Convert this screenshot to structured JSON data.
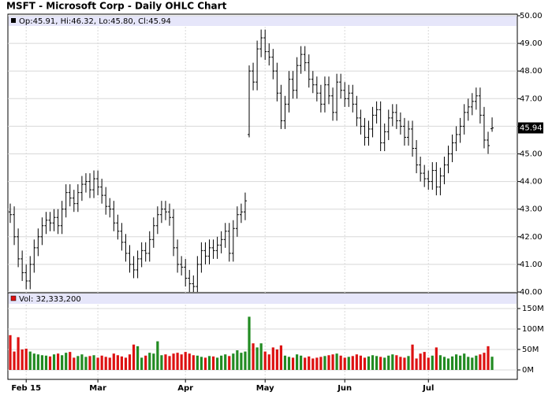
{
  "chart_data": {
    "type": "ohlc",
    "title": "MSFT - Microsoft Corp - Daily OHLC Chart",
    "price_legend": "Op:45.91, Hi:46.32, Lo:45.80, Cl:45.94",
    "volume_legend": "Vol: 32,333,200",
    "last_label": "45.94",
    "categories": [
      null,
      null,
      null,
      null,
      "Feb 15",
      null,
      null,
      null,
      null,
      null,
      null,
      null,
      null,
      null,
      null,
      null,
      null,
      null,
      null,
      null,
      null,
      null,
      "Mar",
      null,
      null,
      null,
      null,
      null,
      null,
      null,
      null,
      null,
      null,
      null,
      null,
      null,
      null,
      null,
      null,
      null,
      null,
      null,
      null,
      null,
      "Apr",
      null,
      null,
      null,
      null,
      null,
      null,
      null,
      null,
      null,
      null,
      null,
      null,
      null,
      null,
      null,
      null,
      null,
      null,
      null,
      "May",
      null,
      null,
      null,
      null,
      null,
      null,
      null,
      null,
      null,
      null,
      null,
      null,
      null,
      null,
      null,
      null,
      null,
      null,
      null,
      "Jun",
      null,
      null,
      null,
      null,
      null,
      null,
      null,
      null,
      null,
      null,
      null,
      null,
      null,
      null,
      null,
      null,
      null,
      null,
      null,
      null,
      "Jul",
      null,
      null,
      null,
      null,
      null,
      null,
      null,
      null,
      null,
      null,
      null,
      null,
      null,
      null,
      null,
      null
    ],
    "open": [
      42.9,
      42.8,
      42.0,
      41.2,
      40.7,
      40.4,
      41.0,
      41.6,
      42.0,
      42.4,
      42.6,
      42.5,
      42.7,
      42.4,
      43.0,
      43.6,
      43.4,
      43.2,
      43.6,
      43.9,
      44.0,
      43.7,
      44.1,
      43.8,
      43.5,
      43.1,
      43.0,
      42.5,
      42.2,
      41.8,
      41.4,
      41.0,
      40.8,
      41.2,
      41.5,
      41.4,
      41.9,
      42.4,
      42.8,
      43.0,
      42.9,
      42.7,
      41.6,
      41.0,
      40.9,
      40.5,
      40.3,
      40.2,
      41.0,
      41.5,
      41.3,
      41.6,
      41.5,
      41.7,
      41.9,
      42.2,
      41.4,
      42.3,
      42.8,
      42.9,
      45.7,
      48.0,
      47.6,
      48.8,
      49.2,
      48.7,
      48.5,
      48.0,
      47.2,
      46.2,
      46.8,
      47.7,
      47.3,
      48.2,
      48.6,
      48.3,
      47.7,
      47.5,
      47.2,
      46.8,
      47.5,
      47.1,
      46.5,
      47.6,
      47.3,
      47.0,
      47.2,
      46.8,
      46.3,
      46.0,
      45.6,
      45.9,
      46.4,
      46.6,
      45.4,
      45.8,
      46.3,
      46.5,
      46.2,
      46.0,
      45.6,
      45.9,
      45.2,
      44.6,
      44.3,
      44.1,
      44.0,
      44.4,
      43.8,
      44.2,
      44.6,
      45.0,
      45.4,
      45.7,
      46.0,
      46.5,
      46.7,
      46.9,
      47.1,
      46.4,
      45.5,
      45.91
    ],
    "high": [
      43.2,
      43.1,
      42.3,
      41.5,
      41.0,
      41.3,
      41.9,
      42.3,
      42.7,
      42.9,
      42.9,
      43.0,
      43.0,
      43.3,
      43.9,
      43.9,
      43.7,
      43.9,
      44.2,
      44.3,
      44.3,
      44.4,
      44.4,
      44.1,
      43.8,
      43.4,
      43.3,
      42.8,
      42.5,
      42.1,
      41.7,
      41.3,
      41.5,
      41.8,
      41.8,
      42.2,
      42.7,
      43.1,
      43.3,
      43.3,
      43.2,
      43.0,
      41.9,
      41.3,
      41.2,
      40.8,
      40.6,
      41.3,
      41.8,
      41.8,
      41.9,
      41.9,
      42.0,
      42.2,
      42.5,
      42.5,
      42.6,
      43.1,
      43.2,
      43.6,
      48.2,
      48.3,
      49.1,
      49.5,
      49.5,
      49.0,
      48.8,
      48.3,
      47.5,
      47.1,
      48.0,
      48.0,
      48.5,
      48.9,
      48.9,
      48.6,
      48.0,
      47.8,
      47.5,
      47.8,
      47.8,
      47.4,
      47.9,
      47.9,
      47.6,
      47.5,
      47.5,
      47.1,
      46.6,
      46.3,
      46.2,
      46.7,
      46.9,
      46.9,
      46.1,
      46.6,
      46.8,
      46.8,
      46.5,
      46.3,
      46.2,
      46.2,
      45.5,
      44.9,
      44.6,
      44.4,
      44.7,
      44.7,
      44.5,
      44.9,
      45.3,
      45.7,
      46.0,
      46.3,
      46.8,
      47.0,
      47.2,
      47.4,
      47.4,
      46.7,
      45.8,
      46.32
    ],
    "low": [
      42.5,
      41.7,
      40.9,
      40.4,
      40.1,
      40.1,
      40.7,
      41.3,
      41.7,
      42.1,
      42.2,
      42.2,
      42.1,
      42.1,
      42.7,
      43.1,
      42.9,
      42.9,
      43.3,
      43.6,
      43.4,
      43.4,
      43.5,
      43.2,
      42.8,
      42.7,
      42.2,
      41.9,
      41.5,
      41.1,
      40.7,
      40.5,
      40.5,
      40.9,
      41.1,
      41.1,
      41.6,
      42.1,
      42.5,
      42.6,
      42.4,
      41.3,
      40.7,
      40.6,
      40.2,
      40.0,
      40.0,
      40.0,
      40.7,
      41.0,
      41.0,
      41.2,
      41.2,
      41.4,
      41.6,
      41.1,
      41.1,
      42.0,
      42.5,
      42.6,
      45.6,
      47.3,
      47.3,
      48.5,
      48.4,
      48.2,
      47.7,
      46.9,
      45.9,
      45.9,
      46.5,
      47.0,
      47.0,
      47.9,
      48.0,
      47.4,
      47.2,
      46.9,
      46.5,
      46.5,
      46.8,
      46.2,
      46.2,
      47.0,
      46.7,
      46.7,
      46.5,
      46.0,
      45.7,
      45.3,
      45.3,
      45.6,
      46.1,
      45.1,
      45.1,
      45.5,
      46.0,
      45.9,
      45.7,
      45.3,
      45.3,
      44.9,
      44.3,
      44.0,
      43.8,
      43.7,
      43.7,
      43.5,
      43.5,
      43.9,
      44.3,
      44.7,
      45.1,
      45.4,
      45.7,
      46.2,
      46.4,
      46.6,
      46.1,
      45.2,
      45.0,
      45.8
    ],
    "close": [
      42.8,
      42.0,
      41.2,
      40.7,
      40.4,
      41.0,
      41.6,
      42.0,
      42.4,
      42.6,
      42.5,
      42.7,
      42.4,
      43.0,
      43.6,
      43.4,
      43.2,
      43.6,
      43.9,
      44.0,
      43.7,
      44.1,
      43.8,
      43.5,
      43.1,
      43.0,
      42.5,
      42.2,
      41.8,
      41.4,
      41.0,
      40.8,
      41.2,
      41.5,
      41.4,
      41.9,
      42.4,
      42.8,
      43.0,
      42.9,
      42.7,
      41.6,
      41.0,
      40.9,
      40.5,
      40.3,
      40.2,
      41.0,
      41.5,
      41.3,
      41.6,
      41.5,
      41.7,
      41.9,
      42.2,
      41.4,
      42.3,
      42.8,
      42.9,
      43.3,
      48.0,
      47.6,
      48.8,
      49.2,
      48.7,
      48.5,
      48.0,
      47.2,
      46.2,
      46.8,
      47.7,
      47.3,
      48.2,
      48.6,
      48.3,
      47.7,
      47.5,
      47.2,
      46.8,
      47.5,
      47.1,
      46.5,
      47.6,
      47.3,
      47.0,
      47.2,
      46.8,
      46.3,
      46.0,
      45.6,
      45.9,
      46.4,
      46.6,
      45.4,
      45.8,
      46.3,
      46.5,
      46.2,
      46.0,
      45.6,
      45.9,
      45.2,
      44.6,
      44.3,
      44.1,
      44.0,
      44.4,
      43.8,
      44.2,
      44.6,
      45.0,
      45.4,
      45.7,
      46.0,
      46.5,
      46.7,
      46.9,
      47.1,
      46.4,
      45.5,
      45.3,
      45.94
    ],
    "volume": [
      85,
      45,
      80,
      50,
      52,
      45,
      40,
      38,
      36,
      35,
      33,
      38,
      40,
      36,
      42,
      44,
      30,
      34,
      38,
      32,
      34,
      36,
      30,
      35,
      32,
      30,
      40,
      36,
      33,
      30,
      38,
      62,
      58,
      30,
      35,
      42,
      40,
      70,
      36,
      38,
      34,
      40,
      42,
      38,
      44,
      40,
      36,
      35,
      32,
      30,
      34,
      33,
      30,
      35,
      38,
      34,
      40,
      48,
      42,
      45,
      130,
      65,
      55,
      65,
      45,
      38,
      55,
      50,
      60,
      35,
      32,
      30,
      38,
      35,
      30,
      33,
      28,
      30,
      32,
      34,
      36,
      38,
      40,
      35,
      30,
      32,
      34,
      38,
      35,
      30,
      33,
      36,
      34,
      32,
      30,
      35,
      38,
      36,
      32,
      30,
      34,
      62,
      28,
      40,
      44,
      30,
      35,
      55,
      36,
      32,
      28,
      33,
      38,
      35,
      40,
      32,
      30,
      35,
      38,
      42,
      58,
      32.3332
    ],
    "bar_color": "#000000",
    "up_color": "#228b22",
    "down_color": "#dd1111",
    "ylim": [
      40,
      50
    ],
    "yticks": [
      {
        "value": 40,
        "label": "40.00"
      },
      {
        "value": 41,
        "label": "41.00"
      },
      {
        "value": 42,
        "label": "42.00"
      },
      {
        "value": 43,
        "label": "43.00"
      },
      {
        "value": 44,
        "label": "44.00"
      },
      {
        "value": 45,
        "label": "45.00"
      },
      {
        "value": 46,
        "label": "46.00"
      },
      {
        "value": 47,
        "label": "47.00"
      },
      {
        "value": 48,
        "label": "48.00"
      },
      {
        "value": 49,
        "label": "49.00"
      },
      {
        "value": 50,
        "label": "50.00"
      }
    ],
    "y2lim": [
      0,
      150
    ],
    "y2ticks": [
      {
        "value": 0,
        "label": "0M"
      },
      {
        "value": 50,
        "label": "50M"
      },
      {
        "value": 100,
        "label": "100M"
      },
      {
        "value": 150,
        "label": "150M"
      }
    ],
    "grid": true
  }
}
